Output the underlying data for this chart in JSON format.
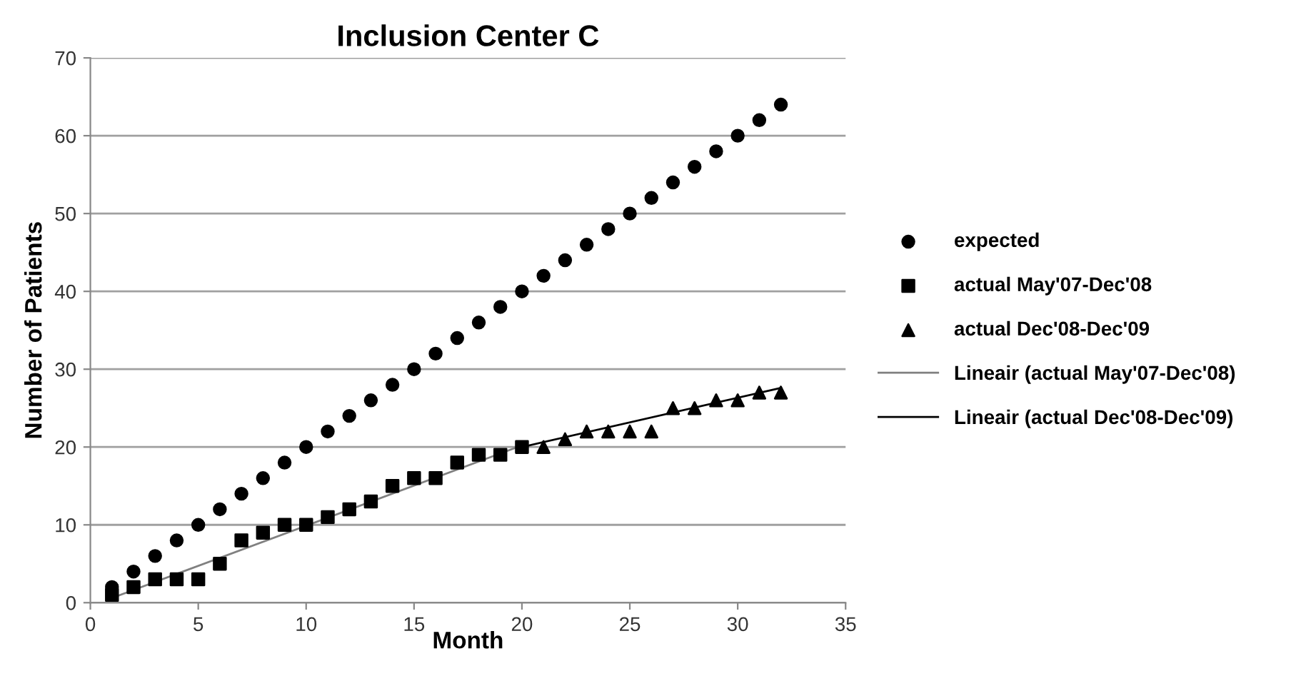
{
  "chart_data": {
    "type": "scatter",
    "title": "Inclusion Center C",
    "xlabel": "Month",
    "ylabel": "Number of Patients",
    "xlim": [
      0,
      35
    ],
    "xticks": [
      0,
      5,
      10,
      15,
      20,
      25,
      30,
      35
    ],
    "ylim": [
      0,
      70
    ],
    "yticks": [
      0,
      10,
      20,
      30,
      40,
      50,
      60,
      70
    ],
    "grid": "y",
    "legend": "right",
    "series": [
      {
        "name": "expected",
        "color": "#000000",
        "marker": "circle",
        "x": [
          1,
          2,
          3,
          4,
          5,
          6,
          7,
          8,
          9,
          10,
          11,
          12,
          13,
          14,
          15,
          16,
          17,
          18,
          19,
          20,
          21,
          22,
          23,
          24,
          25,
          26,
          27,
          28,
          29,
          30,
          31,
          32
        ],
        "values": [
          2,
          4,
          6,
          8,
          10,
          12,
          14,
          16,
          18,
          20,
          22,
          24,
          26,
          28,
          30,
          32,
          34,
          36,
          38,
          40,
          42,
          44,
          46,
          48,
          50,
          52,
          54,
          56,
          58,
          60,
          62,
          64
        ]
      },
      {
        "name": "actual May'07-Dec'08",
        "color": "#000000",
        "marker": "square",
        "x": [
          1,
          2,
          3,
          4,
          5,
          6,
          7,
          8,
          9,
          10,
          11,
          12,
          13,
          14,
          15,
          16,
          17,
          18,
          19,
          20
        ],
        "values": [
          1,
          2,
          3,
          3,
          3,
          5,
          8,
          9,
          10,
          10,
          11,
          12,
          13,
          15,
          16,
          16,
          18,
          19,
          19,
          20
        ]
      },
      {
        "name": "actual Dec'08-Dec'09",
        "color": "#000000",
        "marker": "triangle",
        "x": [
          21,
          22,
          23,
          24,
          25,
          26,
          27,
          28,
          29,
          30,
          31,
          32
        ],
        "values": [
          20,
          21,
          22,
          22,
          22,
          22,
          25,
          25,
          26,
          26,
          27,
          27
        ]
      },
      {
        "name": "Lineair (actual May'07-Dec'08)",
        "type": "line",
        "color": "#808080",
        "marker": "none",
        "x": [
          1,
          20
        ],
        "values": [
          0.6,
          20.2
        ]
      },
      {
        "name": "Lineair (actual Dec'08-Dec'09)",
        "type": "line",
        "color": "#000000",
        "marker": "none",
        "x": [
          20,
          32
        ],
        "values": [
          20,
          27.6
        ]
      }
    ]
  }
}
